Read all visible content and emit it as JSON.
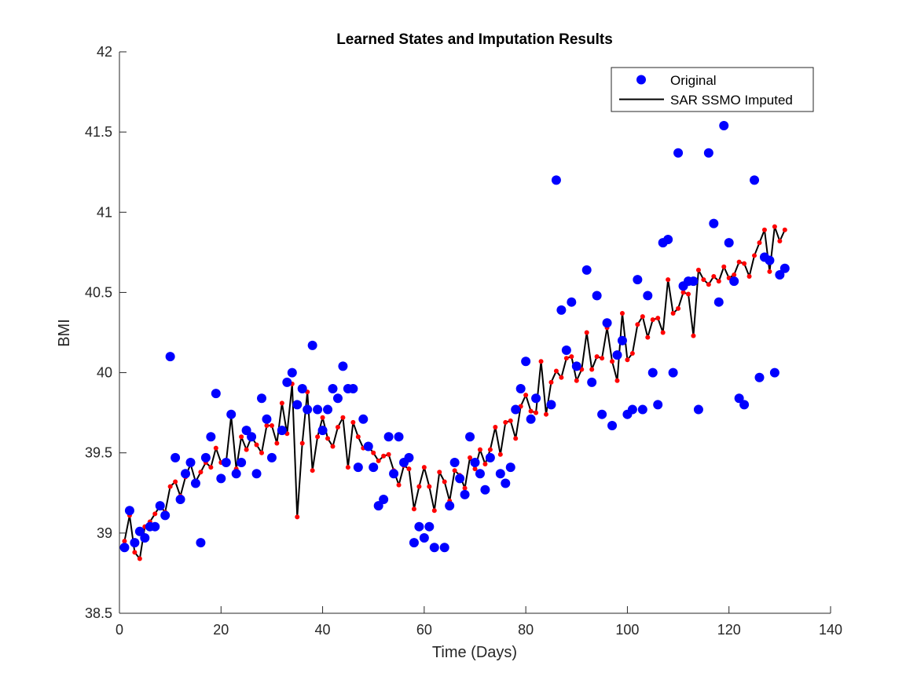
{
  "chart_data": {
    "type": "line",
    "title": "Learned States and Imputation Results",
    "xlabel": "Time (Days)",
    "ylabel": "BMI",
    "xlim": [
      0,
      140
    ],
    "ylim": [
      38.5,
      42
    ],
    "xticks": [
      0,
      20,
      40,
      60,
      80,
      100,
      120,
      140
    ],
    "xtick_labels": [
      "0",
      "20",
      "40",
      "60",
      "80",
      "100",
      "120",
      "140"
    ],
    "yticks": [
      38.5,
      39,
      39.5,
      40,
      40.5,
      41,
      41.5,
      42
    ],
    "ytick_labels": [
      "38.5",
      "39",
      "39.5",
      "40",
      "40.5",
      "41",
      "41.5",
      "42"
    ],
    "grid": false,
    "legend_position": "top-right",
    "series": [
      {
        "name": "Original",
        "style": "scatter",
        "color": "#0000ff",
        "points": [
          [
            1,
            38.91
          ],
          [
            2,
            39.14
          ],
          [
            3,
            38.94
          ],
          [
            4,
            39.01
          ],
          [
            5,
            38.97
          ],
          [
            6,
            39.04
          ],
          [
            7,
            39.04
          ],
          [
            8,
            39.17
          ],
          [
            9,
            39.11
          ],
          [
            10,
            40.1
          ],
          [
            11,
            39.47
          ],
          [
            12,
            39.21
          ],
          [
            13,
            39.37
          ],
          [
            14,
            39.44
          ],
          [
            15,
            39.31
          ],
          [
            16,
            38.94
          ],
          [
            17,
            39.47
          ],
          [
            18,
            39.6
          ],
          [
            19,
            39.87
          ],
          [
            20,
            39.34
          ],
          [
            21,
            39.44
          ],
          [
            22,
            39.74
          ],
          [
            23,
            39.37
          ],
          [
            24,
            39.44
          ],
          [
            25,
            39.64
          ],
          [
            26,
            39.6
          ],
          [
            27,
            39.37
          ],
          [
            28,
            39.84
          ],
          [
            29,
            39.71
          ],
          [
            30,
            39.47
          ],
          [
            32,
            39.64
          ],
          [
            33,
            39.94
          ],
          [
            34,
            40.0
          ],
          [
            35,
            39.8
          ],
          [
            36,
            39.9
          ],
          [
            37,
            39.77
          ],
          [
            38,
            40.17
          ],
          [
            39,
            39.77
          ],
          [
            40,
            39.64
          ],
          [
            41,
            39.77
          ],
          [
            42,
            39.9
          ],
          [
            43,
            39.84
          ],
          [
            44,
            40.04
          ],
          [
            45,
            39.9
          ],
          [
            46,
            39.9
          ],
          [
            47,
            39.41
          ],
          [
            48,
            39.71
          ],
          [
            49,
            39.54
          ],
          [
            50,
            39.41
          ],
          [
            51,
            39.17
          ],
          [
            52,
            39.21
          ],
          [
            53,
            39.6
          ],
          [
            54,
            39.37
          ],
          [
            55,
            39.6
          ],
          [
            56,
            39.44
          ],
          [
            57,
            39.47
          ],
          [
            58,
            38.94
          ],
          [
            59,
            39.04
          ],
          [
            60,
            38.97
          ],
          [
            61,
            39.04
          ],
          [
            62,
            38.91
          ],
          [
            64,
            38.91
          ],
          [
            65,
            39.17
          ],
          [
            66,
            39.44
          ],
          [
            67,
            39.34
          ],
          [
            68,
            39.24
          ],
          [
            69,
            39.6
          ],
          [
            70,
            39.44
          ],
          [
            71,
            39.37
          ],
          [
            72,
            39.27
          ],
          [
            73,
            39.47
          ],
          [
            75,
            39.37
          ],
          [
            76,
            39.31
          ],
          [
            77,
            39.41
          ],
          [
            78,
            39.77
          ],
          [
            79,
            39.9
          ],
          [
            80,
            40.07
          ],
          [
            81,
            39.71
          ],
          [
            82,
            39.84
          ],
          [
            85,
            39.8
          ],
          [
            86,
            41.2
          ],
          [
            87,
            40.39
          ],
          [
            88,
            40.14
          ],
          [
            89,
            40.44
          ],
          [
            90,
            40.04
          ],
          [
            92,
            40.64
          ],
          [
            93,
            39.94
          ],
          [
            94,
            40.48
          ],
          [
            95,
            39.74
          ],
          [
            96,
            40.31
          ],
          [
            97,
            39.67
          ],
          [
            98,
            40.11
          ],
          [
            99,
            40.2
          ],
          [
            100,
            39.74
          ],
          [
            101,
            39.77
          ],
          [
            102,
            40.58
          ],
          [
            103,
            39.77
          ],
          [
            104,
            40.48
          ],
          [
            105,
            40.0
          ],
          [
            106,
            39.8
          ],
          [
            107,
            40.81
          ],
          [
            108,
            40.83
          ],
          [
            109,
            40.0
          ],
          [
            110,
            41.37
          ],
          [
            111,
            40.54
          ],
          [
            112,
            40.57
          ],
          [
            113,
            40.57
          ],
          [
            114,
            39.77
          ],
          [
            116,
            41.37
          ],
          [
            117,
            40.93
          ],
          [
            118,
            40.44
          ],
          [
            119,
            41.54
          ],
          [
            120,
            40.81
          ],
          [
            121,
            40.57
          ],
          [
            122,
            39.84
          ],
          [
            123,
            39.8
          ],
          [
            125,
            41.2
          ],
          [
            126,
            39.97
          ],
          [
            127,
            40.72
          ],
          [
            128,
            40.7
          ],
          [
            129,
            40.0
          ],
          [
            130,
            40.61
          ],
          [
            131,
            40.65
          ]
        ]
      },
      {
        "name": "SAR SSMO Imputed",
        "style": "line",
        "color": "#000000",
        "marker_color": "#ff0000",
        "x_start": 1,
        "values": [
          38.95,
          39.11,
          38.88,
          38.84,
          39.04,
          39.07,
          39.12,
          39.17,
          39.13,
          39.29,
          39.32,
          39.23,
          39.35,
          39.43,
          39.32,
          39.38,
          39.44,
          39.41,
          39.53,
          39.44,
          39.44,
          39.73,
          39.4,
          39.6,
          39.52,
          39.6,
          39.55,
          39.5,
          39.67,
          39.67,
          39.56,
          39.81,
          39.62,
          39.93,
          39.1,
          39.56,
          39.88,
          39.39,
          39.6,
          39.72,
          39.59,
          39.54,
          39.66,
          39.72,
          39.41,
          39.69,
          39.6,
          39.53,
          39.54,
          39.5,
          39.45,
          39.48,
          39.49,
          39.39,
          39.3,
          39.42,
          39.4,
          39.15,
          39.29,
          39.41,
          39.29,
          39.14,
          39.38,
          39.32,
          39.2,
          39.39,
          39.36,
          39.28,
          39.47,
          39.4,
          39.52,
          39.43,
          39.52,
          39.66,
          39.49,
          39.69,
          39.7,
          39.59,
          39.79,
          39.86,
          39.76,
          39.75,
          40.07,
          39.74,
          39.94,
          40.01,
          39.97,
          40.09,
          40.1,
          39.95,
          40.02,
          40.25,
          40.02,
          40.1,
          40.09,
          40.28,
          40.07,
          39.95,
          40.37,
          40.08,
          40.12,
          40.3,
          40.35,
          40.22,
          40.33,
          40.34,
          40.25,
          40.58,
          40.37,
          40.4,
          40.5,
          40.49,
          40.23,
          40.64,
          40.58,
          40.55,
          40.6,
          40.57,
          40.66,
          40.59,
          40.61,
          40.69,
          40.68,
          40.6,
          40.73,
          40.81,
          40.89,
          40.63,
          40.91,
          40.82,
          40.89
        ]
      }
    ]
  }
}
